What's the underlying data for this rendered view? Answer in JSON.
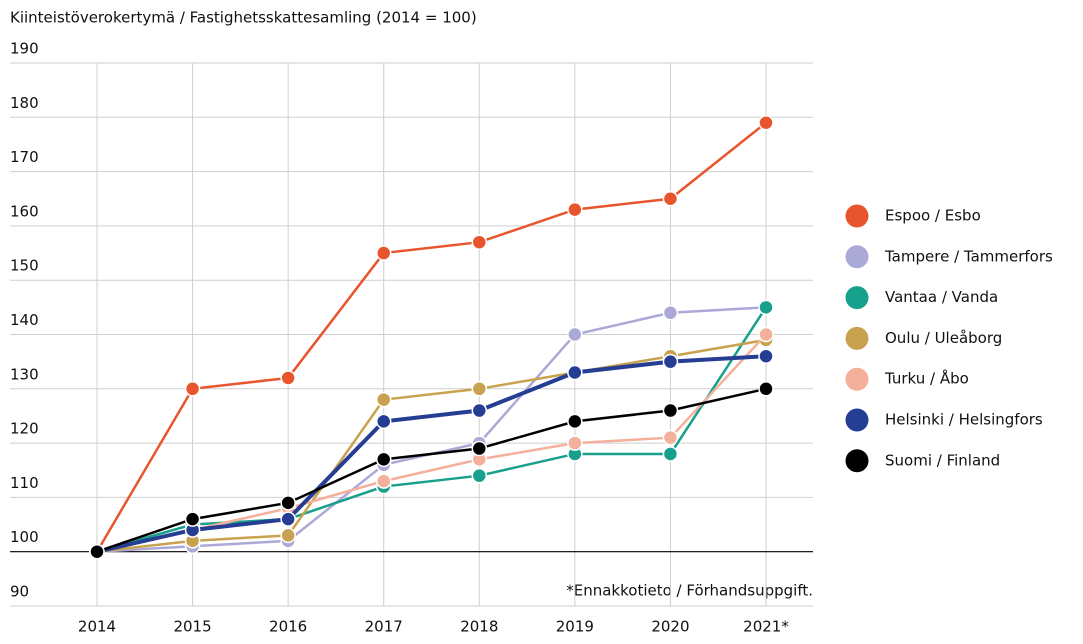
{
  "chart_data": {
    "type": "line",
    "title": "Kiinteistöverokertymä / Fastighetsskattesamling (2014 = 100)",
    "annotation": "*Ennakkotieto / Förhandsuppgift.",
    "categories": [
      "2014",
      "2015",
      "2016",
      "2017",
      "2018",
      "2019",
      "2020",
      "2021*"
    ],
    "series": [
      {
        "name": "Espoo / Esbo",
        "color": "#e8552d",
        "values": [
          100,
          130,
          132,
          155,
          157,
          163,
          165,
          179
        ]
      },
      {
        "name": "Tampere / Tammerfors",
        "color": "#aba9d7",
        "values": [
          100,
          101,
          102,
          116,
          120,
          140,
          144,
          145
        ]
      },
      {
        "name": "Vantaa / Vanda",
        "color": "#17a08b",
        "values": [
          100,
          105,
          106,
          112,
          114,
          118,
          118,
          145
        ]
      },
      {
        "name": "Oulu / Uleåborg",
        "color": "#c9a24f",
        "values": [
          100,
          102,
          103,
          128,
          130,
          133,
          136,
          139
        ]
      },
      {
        "name": "Turku / Åbo",
        "color": "#f5b09b",
        "values": [
          100,
          104,
          108,
          113,
          117,
          120,
          121,
          140
        ]
      },
      {
        "name": "Helsinki / Helsingfors",
        "color": "#263d94",
        "values": [
          100,
          104,
          106,
          124,
          126,
          133,
          135,
          136
        ]
      },
      {
        "name": "Suomi / Finland",
        "color": "#000000",
        "values": [
          100,
          106,
          109,
          117,
          119,
          124,
          126,
          130
        ]
      }
    ],
    "ylim": [
      90,
      190
    ],
    "yticks": [
      90,
      100,
      110,
      120,
      130,
      140,
      150,
      160,
      170,
      180,
      190
    ],
    "grid": true,
    "legend": "right"
  }
}
